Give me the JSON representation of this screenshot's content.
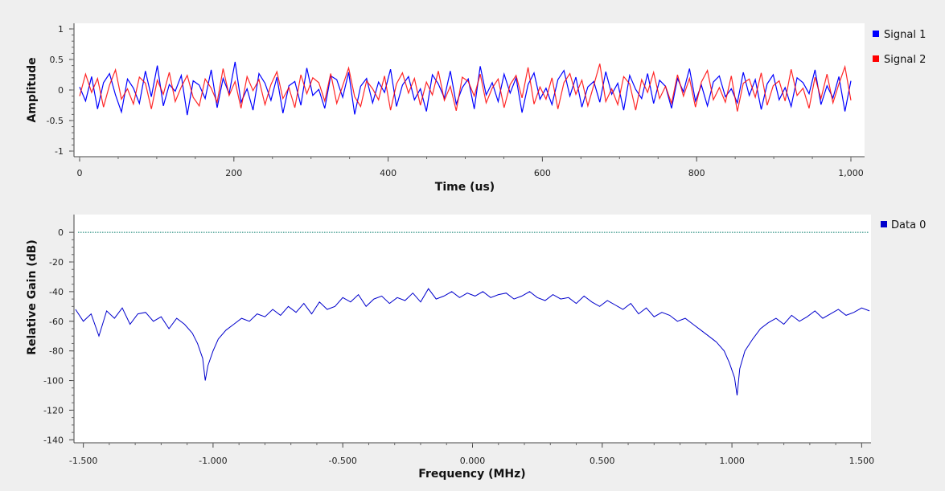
{
  "chart_data": [
    {
      "type": "line",
      "title": "",
      "xlabel": "Time (us)",
      "ylabel": "Amplitude",
      "xlim": [
        0,
        1000
      ],
      "ylim": [
        -1,
        1
      ],
      "x_ticks": [
        {
          "value": 0,
          "label": "0"
        },
        {
          "value": 200,
          "label": "200"
        },
        {
          "value": 400,
          "label": "400"
        },
        {
          "value": 600,
          "label": "600"
        },
        {
          "value": 800,
          "label": "800"
        },
        {
          "value": 1000,
          "label": "1,000"
        }
      ],
      "y_ticks": [
        {
          "value": 1,
          "label": "1"
        },
        {
          "value": 0.5,
          "label": "0.5"
        },
        {
          "value": 0,
          "label": "0"
        },
        {
          "value": -0.5,
          "label": "-0.5"
        },
        {
          "value": -1,
          "label": "-1"
        }
      ],
      "legend_position": "right",
      "grid": false,
      "series": [
        {
          "name": "Signal 1",
          "color": "#0000ff",
          "x_range": [
            0,
            1000
          ],
          "values": [
            0.05,
            -0.18,
            0.22,
            -0.31,
            0.12,
            0.27,
            -0.08,
            -0.36,
            0.18,
            0.03,
            -0.22,
            0.31,
            -0.11,
            0.4,
            -0.26,
            0.09,
            -0.02,
            0.24,
            -0.41,
            0.15,
            0.08,
            -0.14,
            0.33,
            -0.29,
            0.19,
            -0.06,
            0.46,
            -0.2,
            0.02,
            -0.33,
            0.27,
            0.11,
            -0.17,
            0.21,
            -0.38,
            0.07,
            0.14,
            -0.25,
            0.36,
            -0.09,
            0.01,
            -0.3,
            0.23,
            0.17,
            -0.12,
            0.29,
            -0.4,
            0.06,
            0.19,
            -0.21,
            0.13,
            -0.04,
            0.34,
            -0.27,
            0.08,
            0.22,
            -0.16,
            0.02,
            -0.35,
            0.25,
            0.1,
            -0.13,
            0.31,
            -0.23,
            0.04,
            0.18,
            -0.31,
            0.39,
            -0.08,
            0.12,
            -0.19,
            0.26,
            -0.05,
            0.2,
            -0.37,
            0.09,
            0.28,
            -0.15,
            0.03,
            -0.24,
            0.17,
            0.32,
            -0.1,
            0.21,
            -0.28,
            0.05,
            0.14,
            -0.2,
            0.3,
            -0.07,
            0.11,
            -0.33,
            0.24,
            0.01,
            -0.14,
            0.27,
            -0.22,
            0.16,
            0.06,
            -0.3,
            0.19,
            -0.03,
            0.35,
            -0.18,
            0.08,
            -0.26,
            0.13,
            0.23,
            -0.11,
            0.02,
            -0.21,
            0.29,
            -0.09,
            0.17,
            -0.32,
            0.1,
            0.25,
            -0.16,
            0.04,
            -0.27,
            0.2,
            0.12,
            -0.06,
            0.33,
            -0.24,
            0.07,
            -0.13,
            0.22,
            -0.35,
            0.15
          ],
          "note_values": "sampled approximation of noise trace"
        },
        {
          "name": "Signal 2",
          "color": "#ff0000",
          "x_range": [
            0,
            1000
          ],
          "values": [
            -0.1,
            0.26,
            -0.04,
            0.19,
            -0.28,
            0.08,
            0.33,
            -0.15,
            0.02,
            -0.23,
            0.21,
            0.11,
            -0.31,
            0.16,
            -0.07,
            0.29,
            -0.19,
            0.05,
            0.24,
            -0.12,
            -0.26,
            0.18,
            0.03,
            -0.2,
            0.35,
            -0.09,
            0.14,
            -0.3,
            0.22,
            -0.01,
            0.17,
            -0.24,
            0.09,
            0.3,
            -0.14,
            0.04,
            -0.29,
            0.25,
            -0.06,
            0.2,
            0.12,
            -0.18,
            0.27,
            -0.22,
            0.07,
            0.36,
            -0.11,
            -0.27,
            0.15,
            0.02,
            -0.16,
            0.23,
            -0.33,
            0.1,
            0.28,
            -0.05,
            0.19,
            -0.25,
            0.13,
            -0.08,
            0.31,
            -0.17,
            0.06,
            -0.34,
            0.21,
            0.14,
            -0.1,
            0.26,
            -0.21,
            0.03,
            0.18,
            -0.29,
            0.09,
            0.24,
            -0.13,
            0.37,
            -0.23,
            0.05,
            -0.15,
            0.2,
            -0.31,
            0.12,
            0.27,
            -0.07,
            0.16,
            -0.26,
            0.08,
            0.43,
            -0.19,
            0.02,
            -0.24,
            0.22,
            0.1,
            -0.33,
            0.17,
            -0.04,
            0.29,
            -0.14,
            0.06,
            -0.22,
            0.25,
            -0.1,
            0.19,
            -0.28,
            0.13,
            0.32,
            -0.16,
            0.04,
            -0.2,
            0.23,
            -0.35,
            0.11,
            0.18,
            -0.12,
            0.28,
            -0.25,
            0.07,
            0.15,
            -0.18,
            0.34,
            -0.09,
            0.03,
            -0.3,
            0.21,
            -0.14,
            0.26,
            -0.21,
            0.1,
            0.38,
            -0.17
          ],
          "note_values": "sampled approximation of noise trace"
        }
      ]
    },
    {
      "type": "line",
      "title": "",
      "xlabel": "Frequency (MHz)",
      "ylabel": "Relative Gain (dB)",
      "xlim": [
        -1.536,
        1.536
      ],
      "ylim": [
        -142,
        12
      ],
      "x_ticks": [
        {
          "value": -1.5,
          "label": "-1.500"
        },
        {
          "value": -1.0,
          "label": "-1.000"
        },
        {
          "value": -0.5,
          "label": "-0.500"
        },
        {
          "value": 0,
          "label": "0.000"
        },
        {
          "value": 0.5,
          "label": "0.500"
        },
        {
          "value": 1.0,
          "label": "1.000"
        },
        {
          "value": 1.5,
          "label": "1.500"
        }
      ],
      "y_ticks": [
        {
          "value": 0,
          "label": "0"
        },
        {
          "value": -20,
          "label": "-20"
        },
        {
          "value": -40,
          "label": "-40"
        },
        {
          "value": -60,
          "label": "-60"
        },
        {
          "value": -80,
          "label": "-80"
        },
        {
          "value": -100,
          "label": "-100"
        },
        {
          "value": -120,
          "label": "-120"
        },
        {
          "value": -140,
          "label": "-140"
        }
      ],
      "reference_line": {
        "y": 0,
        "color": "#007a6a",
        "style": "dotted"
      },
      "legend_position": "right",
      "grid": false,
      "series": [
        {
          "name": "Data 0",
          "color": "#0000cc",
          "x": [
            -1.53,
            -1.5,
            -1.47,
            -1.44,
            -1.41,
            -1.38,
            -1.35,
            -1.32,
            -1.29,
            -1.26,
            -1.23,
            -1.2,
            -1.17,
            -1.14,
            -1.11,
            -1.08,
            -1.06,
            -1.04,
            -1.03,
            -1.02,
            -1.0,
            -0.98,
            -0.95,
            -0.92,
            -0.89,
            -0.86,
            -0.83,
            -0.8,
            -0.77,
            -0.74,
            -0.71,
            -0.68,
            -0.65,
            -0.62,
            -0.59,
            -0.56,
            -0.53,
            -0.5,
            -0.47,
            -0.44,
            -0.41,
            -0.38,
            -0.35,
            -0.32,
            -0.29,
            -0.26,
            -0.23,
            -0.2,
            -0.17,
            -0.14,
            -0.11,
            -0.08,
            -0.05,
            -0.02,
            0.01,
            0.04,
            0.07,
            0.1,
            0.13,
            0.16,
            0.19,
            0.22,
            0.25,
            0.28,
            0.31,
            0.34,
            0.37,
            0.4,
            0.43,
            0.46,
            0.49,
            0.52,
            0.55,
            0.58,
            0.61,
            0.64,
            0.67,
            0.7,
            0.73,
            0.76,
            0.79,
            0.82,
            0.85,
            0.88,
            0.91,
            0.94,
            0.97,
            0.99,
            1.01,
            1.02,
            1.03,
            1.05,
            1.08,
            1.11,
            1.14,
            1.17,
            1.2,
            1.23,
            1.26,
            1.29,
            1.32,
            1.35,
            1.38,
            1.41,
            1.44,
            1.47,
            1.5,
            1.53
          ],
          "values": [
            -52,
            -60,
            -55,
            -70,
            -53,
            -58,
            -51,
            -62,
            -55,
            -54,
            -60,
            -57,
            -65,
            -58,
            -62,
            -68,
            -75,
            -85,
            -100,
            -90,
            -80,
            -72,
            -66,
            -62,
            -58,
            -60,
            -55,
            -57,
            -52,
            -56,
            -50,
            -54,
            -48,
            -55,
            -47,
            -52,
            -50,
            -44,
            -47,
            -42,
            -50,
            -45,
            -43,
            -48,
            -44,
            -46,
            -41,
            -47,
            -38,
            -45,
            -43,
            -40,
            -44,
            -41,
            -43,
            -40,
            -44,
            -42,
            -41,
            -45,
            -43,
            -40,
            -44,
            -46,
            -42,
            -45,
            -44,
            -48,
            -43,
            -47,
            -50,
            -46,
            -49,
            -52,
            -48,
            -55,
            -51,
            -57,
            -54,
            -56,
            -60,
            -58,
            -62,
            -66,
            -70,
            -74,
            -80,
            -88,
            -98,
            -110,
            -92,
            -80,
            -72,
            -65,
            -61,
            -58,
            -62,
            -56,
            -60,
            -57,
            -53,
            -58,
            -55,
            -52,
            -56,
            -54,
            -51,
            -53
          ]
        }
      ]
    }
  ]
}
